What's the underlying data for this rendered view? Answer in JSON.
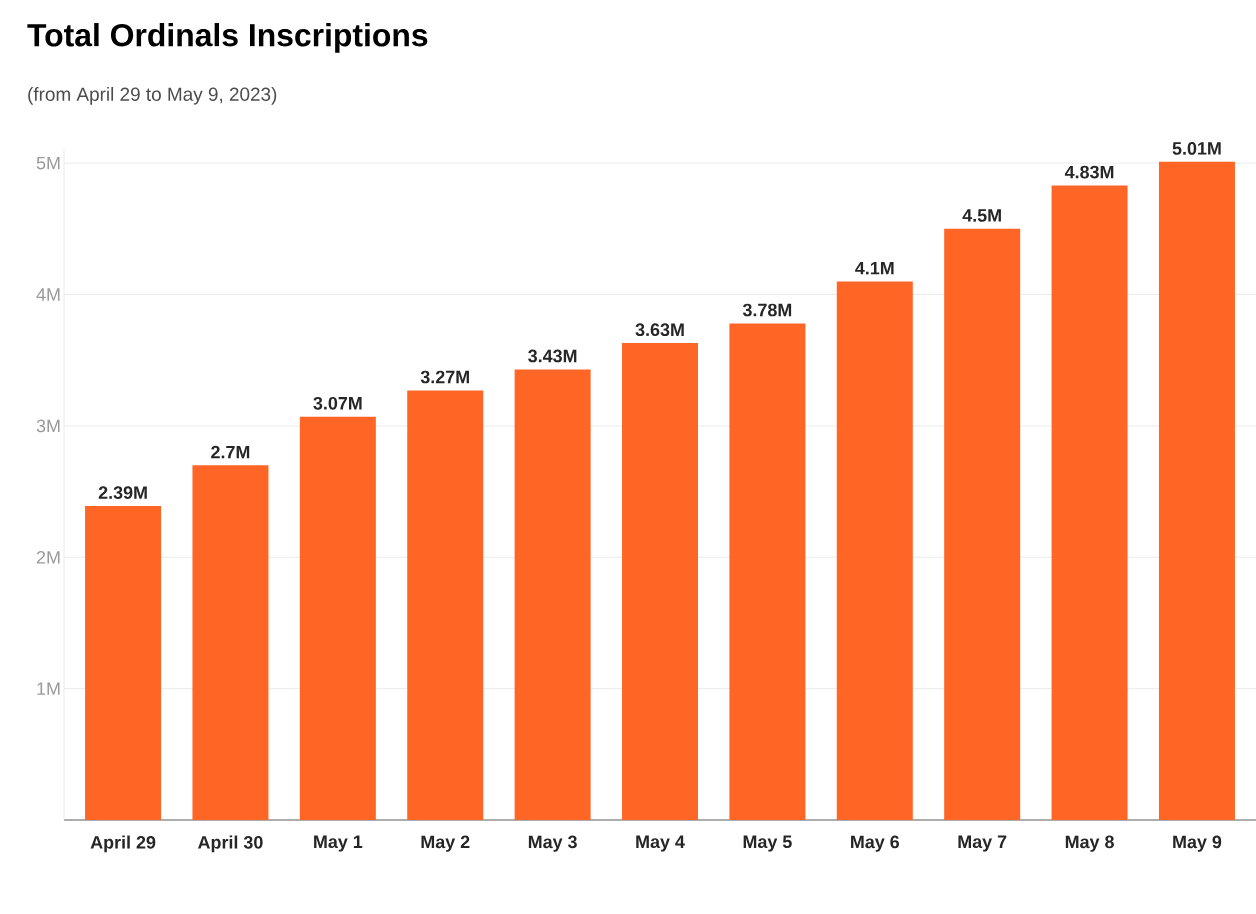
{
  "chart_data": {
    "type": "bar",
    "title": "Total Ordinals Inscriptions",
    "subtitle": "(from April 29 to May 9, 2023)",
    "categories": [
      "April 29",
      "April 30",
      "May 1",
      "May 2",
      "May 3",
      "May 4",
      "May 5",
      "May 6",
      "May 7",
      "May 8",
      "May 9"
    ],
    "values": [
      2390000,
      2700000,
      3070000,
      3270000,
      3430000,
      3630000,
      3780000,
      4100000,
      4500000,
      4830000,
      5010000
    ],
    "value_labels": [
      "2.39M",
      "2.7M",
      "3.07M",
      "3.27M",
      "3.43M",
      "3.63M",
      "3.78M",
      "4.1M",
      "4.5M",
      "4.83M",
      "5.01M"
    ],
    "color": "#ff6625",
    "ylim": [
      0,
      5100000
    ],
    "yticks": [
      {
        "value": 1000000,
        "label": "1M"
      },
      {
        "value": 2000000,
        "label": "2M"
      },
      {
        "value": 3000000,
        "label": "3M"
      },
      {
        "value": 4000000,
        "label": "4M"
      },
      {
        "value": 5000000,
        "label": "5M"
      }
    ],
    "grid": "y"
  }
}
